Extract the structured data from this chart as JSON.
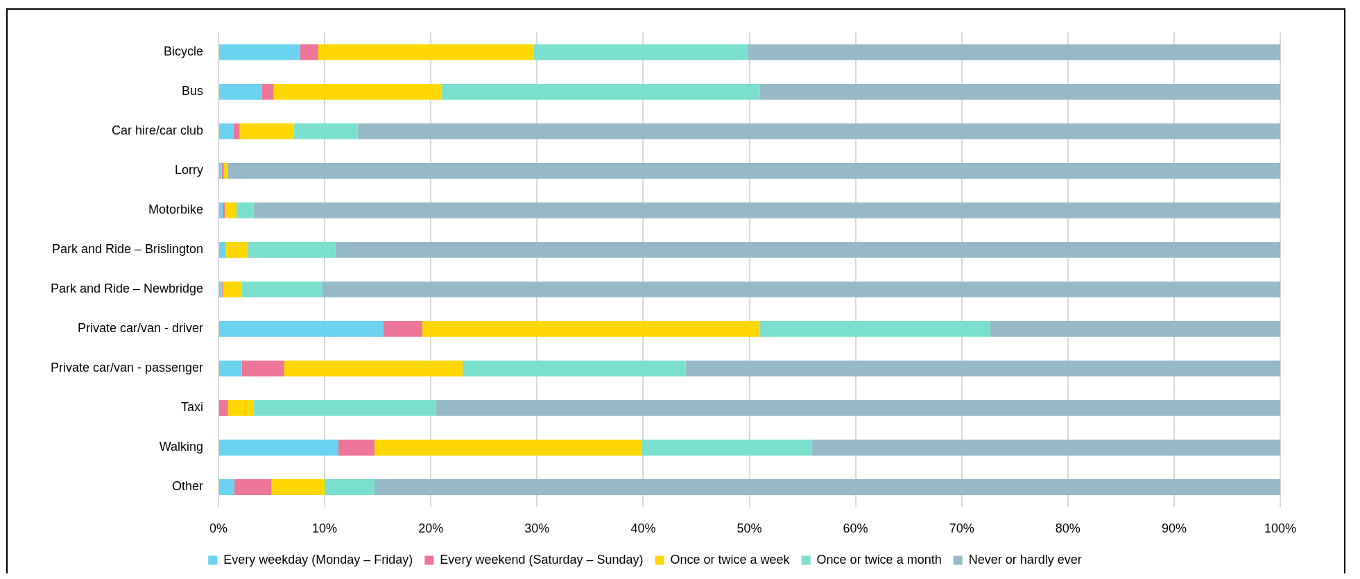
{
  "chart_data": {
    "type": "bar",
    "orientation": "horizontal",
    "stacked": true,
    "categories": [
      "Bicycle",
      "Bus",
      "Car hire/car club",
      "Lorry",
      "Motorbike",
      "Park and Ride – Brislington",
      "Park and Ride – Newbridge",
      "Private car/van - driver",
      "Private car/van - passenger",
      "Taxi",
      "Walking",
      "Other"
    ],
    "series": [
      {
        "name": "Every weekday (Monday – Friday)",
        "color": "#6bd2f0",
        "values": [
          7.7,
          4.1,
          1.4,
          0.3,
          0.4,
          0.7,
          0.3,
          15.5,
          2.2,
          0,
          11.3,
          1.5
        ]
      },
      {
        "name": "Every weekend (Saturday – Sunday)",
        "color": "#ed7599",
        "values": [
          1.7,
          1.1,
          0.6,
          0.2,
          0.2,
          0,
          0.1,
          3.7,
          4.0,
          0.9,
          3.4,
          3.5
        ]
      },
      {
        "name": "Once or twice a week",
        "color": "#ffd700",
        "values": [
          20.3,
          15.8,
          5.1,
          0.3,
          1.1,
          2.0,
          1.8,
          31.8,
          16.8,
          2.4,
          25.2,
          5.0
        ]
      },
      {
        "name": "Once or twice a month",
        "color": "#7adfcc",
        "values": [
          20.1,
          30.0,
          6.0,
          0.1,
          1.6,
          8.3,
          7.6,
          21.7,
          21.0,
          17.2,
          16.0,
          4.7
        ]
      },
      {
        "name": "Never or hardly ever",
        "color": "#95b9c7",
        "values": [
          50.2,
          49.0,
          86.9,
          99.1,
          96.7,
          89.0,
          90.2,
          27.3,
          56.0,
          79.5,
          44.1,
          85.3
        ]
      }
    ],
    "xlim": [
      0,
      100
    ],
    "xticks": [
      {
        "value": 0,
        "label": "0%"
      },
      {
        "value": 10,
        "label": "10%"
      },
      {
        "value": 20,
        "label": "20%"
      },
      {
        "value": 30,
        "label": "30%"
      },
      {
        "value": 40,
        "label": "40%"
      },
      {
        "value": 50,
        "label": "50%"
      },
      {
        "value": 60,
        "label": "60%"
      },
      {
        "value": 70,
        "label": "70%"
      },
      {
        "value": 80,
        "label": "80%"
      },
      {
        "value": 90,
        "label": "90%"
      },
      {
        "value": 100,
        "label": "100%"
      }
    ],
    "grid": "x",
    "legend": "bottom"
  }
}
